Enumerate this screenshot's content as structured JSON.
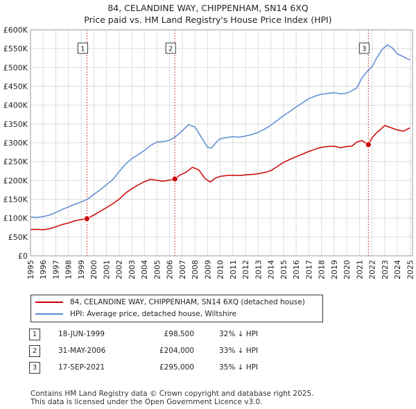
{
  "title_line1": "84, CELANDINE WAY, CHIPPENHAM, SN14 6XQ",
  "title_line2": "Price paid vs. HM Land Registry's House Price Index (HPI)",
  "colors": {
    "property": "#cc0000",
    "hpi": "#5b8bd1",
    "grid": "#dddddd",
    "marker_line": "#cc0000"
  },
  "chart_data": {
    "type": "line",
    "ylim": [
      0,
      600000
    ],
    "xlim": [
      1995.0,
      2025.2
    ],
    "y_ticks": [
      {
        "value": 0,
        "label": "£0"
      },
      {
        "value": 50000,
        "label": "£50K"
      },
      {
        "value": 100000,
        "label": "£100K"
      },
      {
        "value": 150000,
        "label": "£150K"
      },
      {
        "value": 200000,
        "label": "£200K"
      },
      {
        "value": 250000,
        "label": "£250K"
      },
      {
        "value": 300000,
        "label": "£300K"
      },
      {
        "value": 350000,
        "label": "£350K"
      },
      {
        "value": 400000,
        "label": "£400K"
      },
      {
        "value": 450000,
        "label": "£450K"
      },
      {
        "value": 500000,
        "label": "£500K"
      },
      {
        "value": 550000,
        "label": "£550K"
      },
      {
        "value": 600000,
        "label": "£600K"
      }
    ],
    "x_ticks": [
      "1995",
      "1996",
      "1997",
      "1998",
      "1999",
      "2000",
      "2001",
      "2002",
      "2003",
      "2004",
      "2005",
      "2006",
      "2007",
      "2008",
      "2009",
      "2010",
      "2011",
      "2012",
      "2013",
      "2014",
      "2015",
      "2016",
      "2017",
      "2018",
      "2019",
      "2020",
      "2021",
      "2022",
      "2023",
      "2024",
      "2025"
    ],
    "series": [
      {
        "name": "84, CELANDINE WAY, CHIPPENHAM, SN14 6XQ (detached house)",
        "color": "#cc0000",
        "x": [
          1995.0,
          1995.5,
          1996.0,
          1996.5,
          1997.0,
          1997.5,
          1998.0,
          1998.5,
          1999.0,
          1999.46,
          2000.0,
          2000.5,
          2001.0,
          2001.5,
          2002.0,
          2002.5,
          2003.0,
          2003.5,
          2004.0,
          2004.5,
          2005.0,
          2005.5,
          2006.0,
          2006.41,
          2006.8,
          2007.3,
          2007.8,
          2008.3,
          2008.8,
          2009.2,
          2009.6,
          2010.0,
          2010.5,
          2011.0,
          2011.5,
          2012.0,
          2012.5,
          2013.0,
          2013.5,
          2014.0,
          2014.5,
          2015.0,
          2015.5,
          2016.0,
          2016.5,
          2017.0,
          2017.5,
          2018.0,
          2018.5,
          2019.0,
          2019.5,
          2020.0,
          2020.4,
          2020.8,
          2021.2,
          2021.71,
          2022.0,
          2022.3,
          2022.7,
          2023.0,
          2023.5,
          2024.0,
          2024.5,
          2025.0
        ],
        "values": [
          70000,
          70000,
          69000,
          72000,
          77000,
          83000,
          87000,
          93000,
          96000,
          98500,
          108000,
          118000,
          128000,
          138000,
          150000,
          166000,
          178000,
          188000,
          197000,
          203000,
          200000,
          198000,
          201000,
          204000,
          214000,
          222000,
          235000,
          228000,
          205000,
          196000,
          206000,
          211000,
          213000,
          214000,
          213000,
          215000,
          216000,
          218000,
          221000,
          226000,
          237000,
          248000,
          256000,
          263000,
          270000,
          277000,
          283000,
          288000,
          290000,
          291000,
          287000,
          290000,
          291000,
          302000,
          306000,
          295000,
          313000,
          325000,
          336000,
          346000,
          340000,
          334000,
          331000,
          340000
        ]
      },
      {
        "name": "HPI: Average price, detached house, Wiltshire",
        "color": "#5b8bd1",
        "x": [
          1995.0,
          1995.5,
          1996.0,
          1996.5,
          1997.0,
          1997.5,
          1998.0,
          1998.5,
          1999.0,
          1999.5,
          2000.0,
          2000.5,
          2001.0,
          2001.5,
          2002.0,
          2002.5,
          2003.0,
          2003.5,
          2004.0,
          2004.5,
          2005.0,
          2005.5,
          2006.0,
          2006.5,
          2007.0,
          2007.5,
          2008.0,
          2008.5,
          2009.0,
          2009.3,
          2009.7,
          2010.0,
          2010.5,
          2011.0,
          2011.5,
          2012.0,
          2012.5,
          2013.0,
          2013.5,
          2014.0,
          2014.5,
          2015.0,
          2015.5,
          2016.0,
          2016.5,
          2017.0,
          2017.5,
          2018.0,
          2018.5,
          2019.0,
          2019.5,
          2020.0,
          2020.4,
          2020.8,
          2021.2,
          2021.6,
          2022.0,
          2022.4,
          2022.8,
          2023.2,
          2023.6,
          2024.0,
          2024.5,
          2025.0
        ],
        "values": [
          103000,
          102000,
          104000,
          108000,
          115000,
          123000,
          130000,
          137000,
          143000,
          150000,
          163000,
          175000,
          189000,
          202000,
          223000,
          243000,
          258000,
          268000,
          280000,
          293000,
          302000,
          303000,
          307000,
          317000,
          332000,
          348000,
          342000,
          315000,
          288000,
          286000,
          302000,
          311000,
          314000,
          316000,
          315000,
          318000,
          322000,
          328000,
          336000,
          347000,
          359000,
          372000,
          383000,
          395000,
          406000,
          417000,
          424000,
          429000,
          431000,
          433000,
          430000,
          432000,
          438000,
          446000,
          472000,
          489000,
          502000,
          527000,
          548000,
          560000,
          552000,
          536000,
          528000,
          520000
        ]
      }
    ],
    "sales": [
      {
        "label": "1",
        "x": 1999.46,
        "value": 98500
      },
      {
        "label": "2",
        "x": 2006.41,
        "value": 204000
      },
      {
        "label": "3",
        "x": 2021.71,
        "value": 295000
      }
    ]
  },
  "legend": {
    "property": "84, CELANDINE WAY, CHIPPENHAM, SN14 6XQ (detached house)",
    "hpi": "HPI: Average price, detached house, Wiltshire"
  },
  "transactions": [
    {
      "num": "1",
      "date": "18-JUN-1999",
      "price": "£98,500",
      "hpi": "32% ↓ HPI"
    },
    {
      "num": "2",
      "date": "31-MAY-2006",
      "price": "£204,000",
      "hpi": "33% ↓ HPI"
    },
    {
      "num": "3",
      "date": "17-SEP-2021",
      "price": "£295,000",
      "hpi": "35% ↓ HPI"
    }
  ],
  "footer_line1": "Contains HM Land Registry data © Crown copyright and database right 2025.",
  "footer_line2": "This data is licensed under the Open Government Licence v3.0."
}
